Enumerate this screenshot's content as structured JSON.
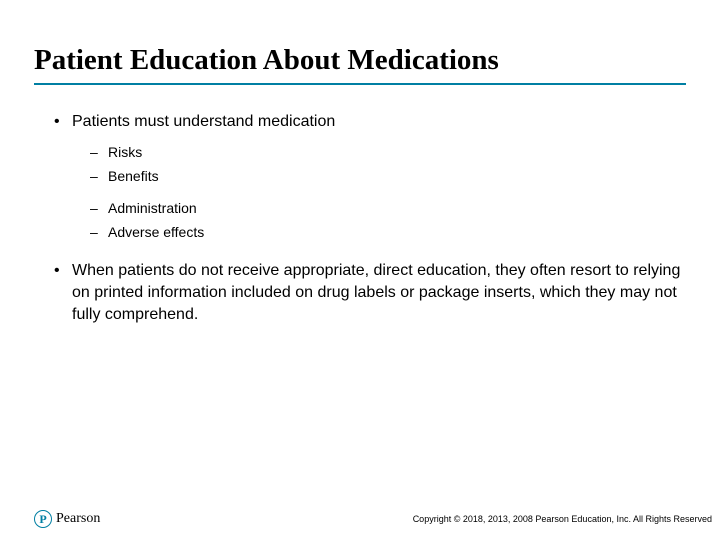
{
  "colors": {
    "accent": "#007fa3",
    "text": "#000000",
    "background": "#ffffff"
  },
  "title": {
    "text": "Patient Education About Medications",
    "font_family": "Times New Roman",
    "font_weight": "bold",
    "font_size_pt": 22,
    "underline_color": "#007fa3"
  },
  "body": {
    "font_family": "Arial",
    "l1_font_size_pt": 12,
    "l2_font_size_pt": 10
  },
  "bullets": [
    {
      "text": "Patients must understand medication",
      "sub": [
        {
          "text": "Risks"
        },
        {
          "text": "Benefits"
        },
        {
          "text": "Administration"
        },
        {
          "text": "Adverse effects"
        }
      ]
    },
    {
      "text": "When patients do not receive appropriate, direct education, they often resort to relying on printed information included on drug labels or package inserts, which they may not fully comprehend."
    }
  ],
  "footer": {
    "brand": {
      "mark_letter": "P",
      "name": "Pearson"
    },
    "copyright": "Copyright © 2018, 2013, 2008 Pearson Education, Inc. All Rights Reserved"
  }
}
